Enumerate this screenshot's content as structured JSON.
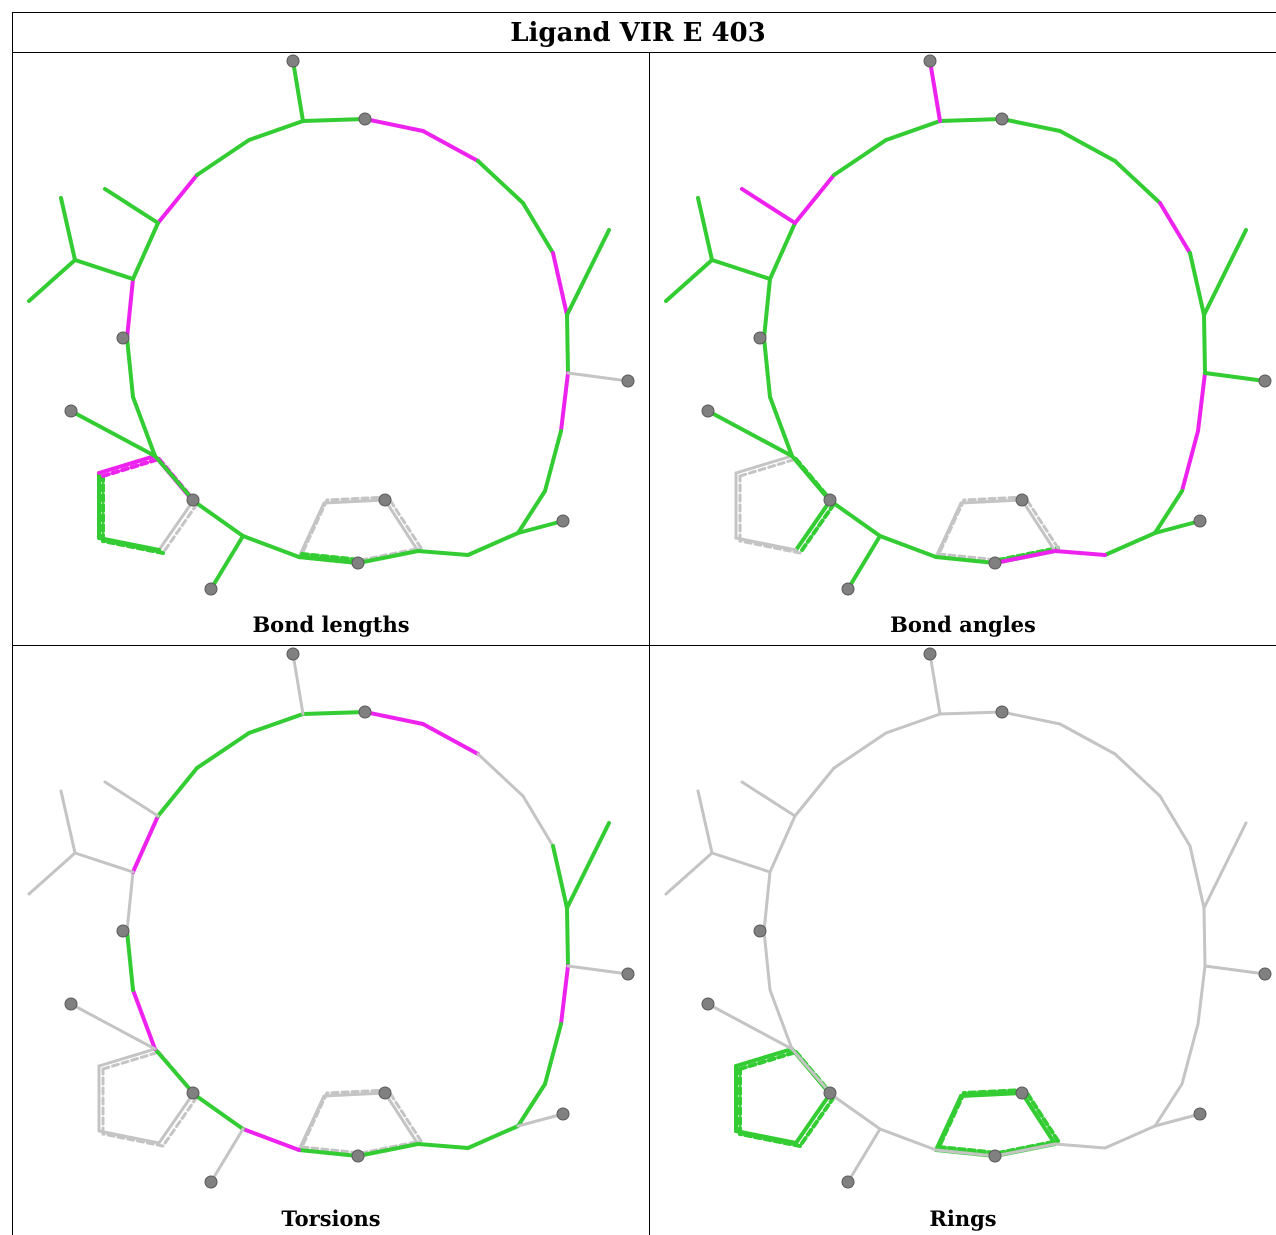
{
  "title": "Ligand VIR E 403",
  "colors": {
    "ok": "#33cc33",
    "outlier": "#ee22ee",
    "neutral": "#c4c4c4",
    "atom": "#808080"
  },
  "panels": [
    {
      "caption": "Bond lengths",
      "ring_colors": [
        "ok",
        "outlier",
        "outlier",
        "ok",
        "ok",
        "outlier",
        "ok",
        "outlier",
        "ok",
        "ok",
        "ok",
        "ok",
        "ok",
        "ok",
        "ok",
        "ok",
        "ok",
        "ok",
        "ok",
        "outlier",
        "ok",
        "outlier",
        "ok",
        "ok"
      ],
      "sub_colors": [
        "ok",
        "neutral",
        "ok",
        "ok",
        "ok",
        "ok",
        "ok",
        "ok",
        "ok",
        "ok",
        "ok",
        "ok",
        "ok"
      ],
      "pent_left": [
        "outlier",
        "neutral",
        "ok",
        "ok",
        "outlier"
      ],
      "pent_bottom": [
        "neutral",
        "neutral",
        "neutral",
        "neutral",
        "ok"
      ]
    },
    {
      "caption": "Bond angles",
      "ring_colors": [
        "ok",
        "ok",
        "ok",
        "ok",
        "outlier",
        "ok",
        "ok",
        "outlier",
        "outlier",
        "ok",
        "ok",
        "outlier",
        "outlier",
        "ok",
        "ok",
        "ok",
        "ok",
        "ok",
        "ok",
        "ok",
        "ok",
        "outlier",
        "ok",
        "ok"
      ],
      "sub_colors": [
        "outlier",
        "ok",
        "ok",
        "ok",
        "ok",
        "ok",
        "outlier",
        "ok",
        "ok",
        "ok",
        "ok",
        "ok",
        "outlier"
      ],
      "pent_left": [
        "ok",
        "ok",
        "neutral",
        "neutral",
        "neutral"
      ],
      "pent_bottom": [
        "ok",
        "neutral",
        "neutral",
        "neutral",
        "neutral"
      ]
    },
    {
      "caption": "Torsions",
      "ring_colors": [
        "ok",
        "outlier",
        "outlier",
        "neutral",
        "neutral",
        "ok",
        "ok",
        "outlier",
        "ok",
        "ok",
        "ok",
        "ok",
        "ok",
        "ok",
        "outlier",
        "ok",
        "ok",
        "outlier",
        "ok",
        "neutral",
        "outlier",
        "ok",
        "ok",
        "ok"
      ],
      "sub_colors": [
        "neutral",
        "neutral",
        "ok",
        "neutral",
        "neutral",
        "neutral",
        "neutral",
        "neutral",
        "neutral",
        "neutral",
        "neutral",
        "neutral",
        "neutral"
      ],
      "pent_left": [
        "neutral",
        "neutral",
        "neutral",
        "neutral",
        "neutral"
      ],
      "pent_bottom": [
        "neutral",
        "neutral",
        "neutral",
        "neutral",
        "neutral"
      ]
    },
    {
      "caption": "Rings",
      "ring_colors": [
        "neutral",
        "neutral",
        "neutral",
        "neutral",
        "neutral",
        "neutral",
        "neutral",
        "neutral",
        "neutral",
        "neutral",
        "neutral",
        "neutral",
        "neutral",
        "neutral",
        "neutral",
        "neutral",
        "neutral",
        "neutral",
        "neutral",
        "neutral",
        "neutral",
        "neutral",
        "neutral",
        "neutral"
      ],
      "sub_colors": [
        "neutral",
        "neutral",
        "neutral",
        "neutral",
        "neutral",
        "neutral",
        "neutral",
        "neutral",
        "neutral",
        "neutral",
        "neutral",
        "neutral",
        "neutral"
      ],
      "pent_left": [
        "ok",
        "ok",
        "ok",
        "ok",
        "ok"
      ],
      "pent_bottom": [
        "ok",
        "ok",
        "ok",
        "ok",
        "ok"
      ]
    }
  ]
}
